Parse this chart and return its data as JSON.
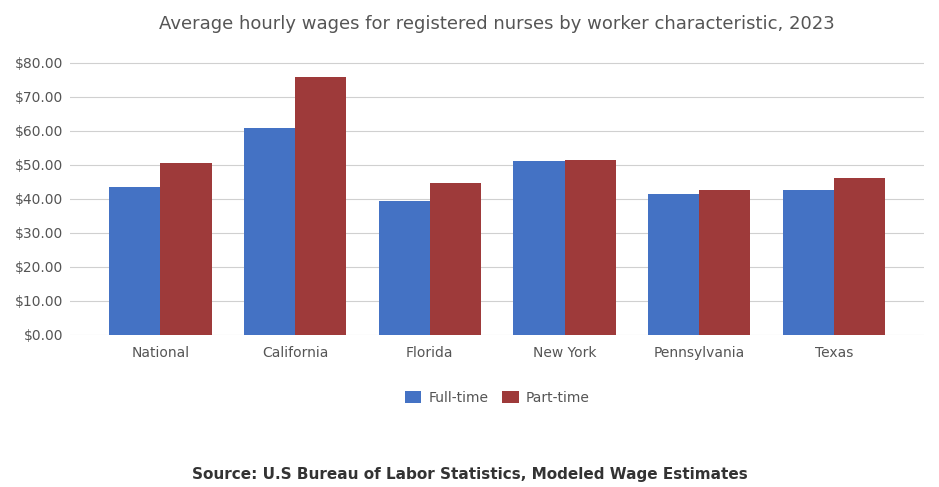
{
  "title": "Average hourly wages for registered nurses by worker characteristic, 2023",
  "categories": [
    "National",
    "California",
    "Florida",
    "New York",
    "Pennsylvania",
    "Texas"
  ],
  "fulltime": [
    43.5,
    60.7,
    39.5,
    51.2,
    41.5,
    42.5
  ],
  "parttime": [
    50.5,
    75.8,
    44.8,
    51.4,
    42.7,
    46.0
  ],
  "fulltime_color": "#4472C4",
  "parttime_color": "#9E3A3A",
  "legend_labels": [
    "Full-time",
    "Part-time"
  ],
  "ylabel_ticks": [
    0,
    10,
    20,
    30,
    40,
    50,
    60,
    70,
    80
  ],
  "ylim": [
    0,
    85
  ],
  "source_text": "Source: U.S Bureau of Labor Statistics, Modeled Wage Estimates",
  "background_color": "#ffffff",
  "bar_width": 0.38
}
